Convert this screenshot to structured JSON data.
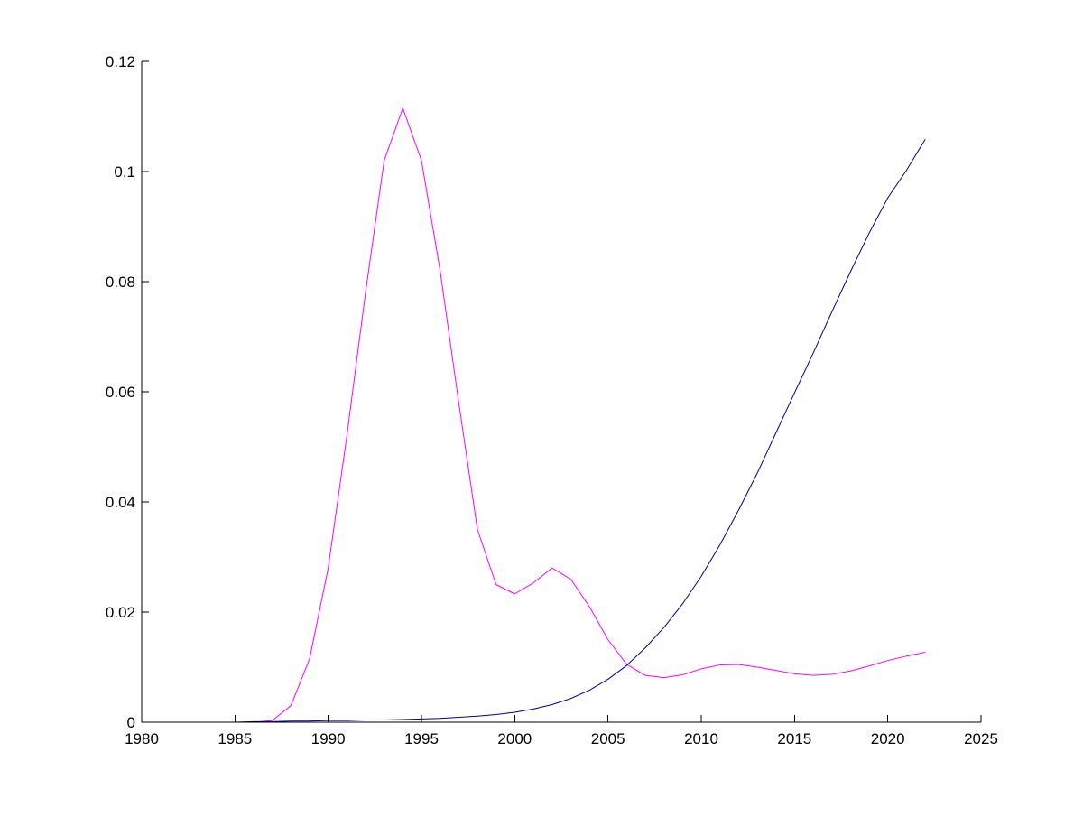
{
  "chart_data": {
    "type": "line",
    "title": "",
    "xlabel": "",
    "ylabel": "",
    "xlim": [
      1980,
      2025
    ],
    "ylim": [
      0,
      0.12
    ],
    "xticks": [
      {
        "value": 1980,
        "label": "1980"
      },
      {
        "value": 1985,
        "label": "1985"
      },
      {
        "value": 1990,
        "label": "1990"
      },
      {
        "value": 1995,
        "label": "1995"
      },
      {
        "value": 2000,
        "label": "2000"
      },
      {
        "value": 2005,
        "label": "2005"
      },
      {
        "value": 2010,
        "label": "2010"
      },
      {
        "value": 2015,
        "label": "2015"
      },
      {
        "value": 2020,
        "label": "2020"
      },
      {
        "value": 2025,
        "label": "2025"
      }
    ],
    "yticks": [
      {
        "value": 0,
        "label": "0"
      },
      {
        "value": 0.02,
        "label": "0.02"
      },
      {
        "value": 0.04,
        "label": "0.04"
      },
      {
        "value": 0.06,
        "label": "0.06"
      },
      {
        "value": 0.08,
        "label": "0.08"
      },
      {
        "value": 0.1,
        "label": "0.1"
      },
      {
        "value": 0.12,
        "label": "0.12"
      }
    ],
    "grid": false,
    "legend": "none",
    "box": "left-bottom",
    "series": [
      {
        "color": "#ff00ff",
        "x": [
          1980,
          1981,
          1982,
          1983,
          1984,
          1985,
          1986,
          1987,
          1988,
          1989,
          1990,
          1991,
          1992,
          1993,
          1994,
          1995,
          1996,
          1997,
          1998,
          1999,
          2000,
          2001,
          2002,
          2003,
          2004,
          2005,
          2006,
          2007,
          2008,
          2009,
          2010,
          2011,
          2012,
          2013,
          2014,
          2015,
          2016,
          2017,
          2018,
          2019,
          2020,
          2021,
          2022
        ],
        "y": [
          0,
          0,
          0,
          0,
          0,
          0,
          0,
          0.0003,
          0.003,
          0.0115,
          0.028,
          0.052,
          0.078,
          0.102,
          0.1115,
          0.102,
          0.082,
          0.058,
          0.035,
          0.025,
          0.0233,
          0.0253,
          0.028,
          0.026,
          0.021,
          0.015,
          0.0105,
          0.0085,
          0.0081,
          0.0086,
          0.0097,
          0.0104,
          0.0105,
          0.01,
          0.0094,
          0.0088,
          0.0085,
          0.0087,
          0.0093,
          0.0102,
          0.0112,
          0.012,
          0.0127
        ]
      },
      {
        "color": "#00008b",
        "x": [
          1980,
          1981,
          1982,
          1983,
          1984,
          1985,
          1986,
          1987,
          1988,
          1989,
          1990,
          1991,
          1992,
          1993,
          1994,
          1995,
          1996,
          1997,
          1998,
          1999,
          2000,
          2001,
          2002,
          2003,
          2004,
          2005,
          2006,
          2007,
          2008,
          2009,
          2010,
          2011,
          2012,
          2013,
          2014,
          2015,
          2016,
          2017,
          2018,
          2019,
          2020,
          2021,
          2022
        ],
        "y": [
          0,
          0,
          0,
          0,
          0,
          0,
          0.0001,
          0.0001,
          0.0002,
          0.0002,
          0.0003,
          0.0003,
          0.0004,
          0.0004,
          0.0005,
          0.0006,
          0.0007,
          0.0009,
          0.0011,
          0.0014,
          0.0018,
          0.0024,
          0.0032,
          0.0043,
          0.0058,
          0.0078,
          0.0103,
          0.0135,
          0.0172,
          0.0215,
          0.0265,
          0.0322,
          0.0385,
          0.0452,
          0.0525,
          0.0598,
          0.067,
          0.0745,
          0.0818,
          0.0888,
          0.0952,
          0.1002,
          0.1058
        ]
      }
    ]
  }
}
